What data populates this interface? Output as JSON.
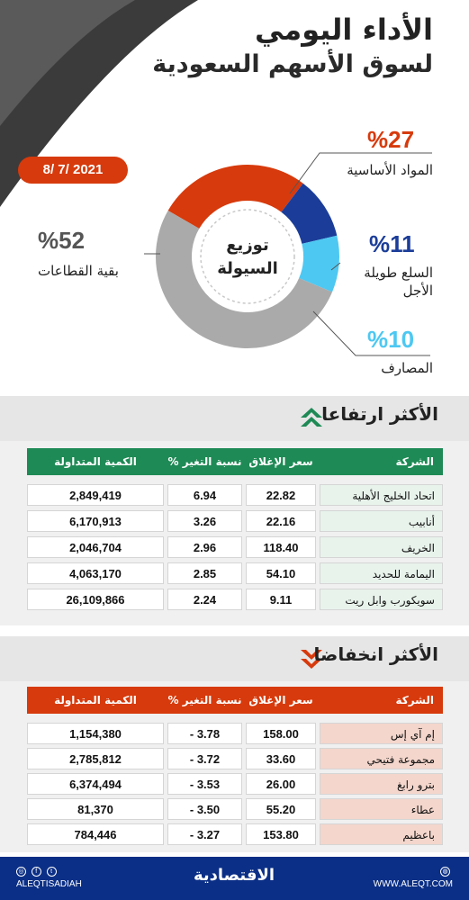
{
  "header": {
    "title_main": "الأداء اليومي",
    "title_sub": "لسوق الأسهم السعودية",
    "date": "8/ 7/ 2021"
  },
  "chart_data": {
    "type": "pie",
    "title": "توزيع السيولة",
    "title_line1": "توزيع",
    "title_line2": "السيولة",
    "slices": [
      {
        "label": "المواد الأساسية",
        "value": 27,
        "pct_text": "%27",
        "color": "#d73a0c"
      },
      {
        "label_line1": "السلع طويلة",
        "label_line2": "الأجل",
        "value": 11,
        "pct_text": "%11",
        "color": "#1b3d99"
      },
      {
        "label": "المصارف",
        "value": 10,
        "pct_text": "%10",
        "color": "#4dc8f2"
      },
      {
        "label": "بقية القطاعات",
        "value": 52,
        "pct_text": "%52",
        "color": "#aaaaaa"
      }
    ]
  },
  "gainers": {
    "title": "الأكثر ارتفاعا",
    "header_color": "#1e8a55",
    "columns": {
      "name": "الشركة",
      "close": "سعر الإغلاق",
      "change": "نسبة التغير %",
      "volume": "الكمية المتداولة"
    },
    "rows": [
      {
        "name": "اتحاد الخليج الأهلية",
        "close": "22.82",
        "change": "6.94",
        "volume": "2,849,419"
      },
      {
        "name": "أنابيب",
        "close": "22.16",
        "change": "3.26",
        "volume": "6,170,913"
      },
      {
        "name": "الخريف",
        "close": "118.40",
        "change": "2.96",
        "volume": "2,046,704"
      },
      {
        "name": "اليمامة للحديد",
        "close": "54.10",
        "change": "2.85",
        "volume": "4,063,170"
      },
      {
        "name": "سويكورب وابل ريت",
        "close": "9.11",
        "change": "2.24",
        "volume": "26,109,866"
      }
    ]
  },
  "losers": {
    "title": "الأكثر انخفاضا",
    "header_color": "#d73a0c",
    "columns": {
      "name": "الشركة",
      "close": "سعر الإغلاق",
      "change": "نسبة التغير %",
      "volume": "الكمية المتداولة"
    },
    "rows": [
      {
        "name": "إم آي إس",
        "close": "158.00",
        "change": "- 3.78",
        "volume": "1,154,380"
      },
      {
        "name": "مجموعة فتيحي",
        "close": "33.60",
        "change": "- 3.72",
        "volume": "2,785,812"
      },
      {
        "name": "بترو رابغ",
        "close": "26.00",
        "change": "- 3.53",
        "volume": "6,374,494"
      },
      {
        "name": "عطاء",
        "close": "55.20",
        "change": "- 3.50",
        "volume": "81,370"
      },
      {
        "name": "باعظيم",
        "close": "153.80",
        "change": "- 3.27",
        "volume": "784,446"
      }
    ]
  },
  "footer": {
    "social": "ALEQTISADIAH",
    "logo": "الاقتصادية",
    "website": "WWW.ALEQT.COM"
  }
}
